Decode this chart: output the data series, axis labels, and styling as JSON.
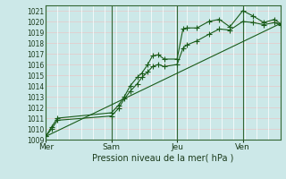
{
  "title": "",
  "xlabel": "Pression niveau de la mer( hPa )",
  "bg_color": "#cce8e8",
  "grid_color": "#ffffff",
  "grid_color_h": "#e8c8c8",
  "line_color": "#1a5c1a",
  "ylim": [
    1009,
    1021.5
  ],
  "yticks": [
    1009,
    1010,
    1011,
    1012,
    1013,
    1014,
    1015,
    1016,
    1017,
    1018,
    1019,
    1020,
    1021
  ],
  "day_labels": [
    "Mer",
    "Sam",
    "Jeu",
    "Ven"
  ],
  "day_positions": [
    0.0,
    0.28,
    0.56,
    0.84
  ],
  "vline_positions": [
    0.0,
    0.28,
    0.56,
    0.84
  ],
  "xlim": [
    0.0,
    1.0
  ],
  "series1_x": [
    0.0,
    0.025,
    0.05,
    0.28,
    0.31,
    0.335,
    0.36,
    0.39,
    0.41,
    0.435,
    0.455,
    0.48,
    0.505,
    0.56,
    0.585,
    0.6,
    0.645,
    0.695,
    0.74,
    0.785,
    0.84,
    0.885,
    0.93,
    0.975,
    1.0
  ],
  "series1_y": [
    1009.3,
    1010.2,
    1011.0,
    1011.5,
    1012.2,
    1013.0,
    1014.0,
    1014.8,
    1015.2,
    1016.0,
    1016.8,
    1016.9,
    1016.5,
    1016.5,
    1019.3,
    1019.4,
    1019.4,
    1020.0,
    1020.2,
    1019.5,
    1021.0,
    1020.5,
    1019.9,
    1020.2,
    1019.8
  ],
  "series2_x": [
    0.0,
    0.025,
    0.05,
    0.28,
    0.31,
    0.335,
    0.36,
    0.39,
    0.41,
    0.435,
    0.455,
    0.48,
    0.505,
    0.56,
    0.585,
    0.6,
    0.645,
    0.695,
    0.74,
    0.785,
    0.84,
    0.885,
    0.93,
    0.975,
    1.0
  ],
  "series2_y": [
    1009.3,
    1010.0,
    1010.8,
    1011.2,
    1011.9,
    1012.8,
    1013.5,
    1014.2,
    1014.8,
    1015.3,
    1015.8,
    1016.0,
    1015.8,
    1016.0,
    1017.5,
    1017.8,
    1018.2,
    1018.8,
    1019.3,
    1019.2,
    1020.0,
    1019.9,
    1019.7,
    1019.9,
    1019.7
  ],
  "trend_x": [
    0.0,
    1.0
  ],
  "trend_y": [
    1009.3,
    1019.8
  ],
  "marker": "+",
  "markersize": 4,
  "linewidth": 0.8
}
